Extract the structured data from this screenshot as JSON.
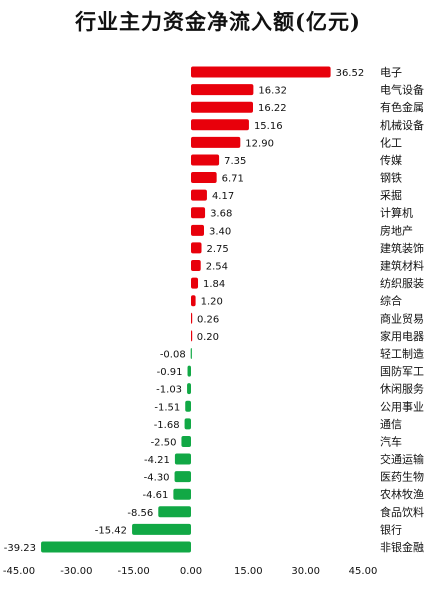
{
  "chart_data": {
    "type": "bar",
    "orientation": "horizontal",
    "title": "行业主力资金净流入额(亿元)",
    "categories": [
      "电子",
      "电气设备",
      "有色金属",
      "机械设备",
      "化工",
      "传媒",
      "钢铁",
      "采掘",
      "计算机",
      "房地产",
      "建筑装饰",
      "建筑材料",
      "纺织服装",
      "综合",
      "商业贸易",
      "家用电器",
      "轻工制造",
      "国防军工",
      "休闲服务",
      "公用事业",
      "通信",
      "汽车",
      "交通运输",
      "医药生物",
      "农林牧渔",
      "食品饮料",
      "银行",
      "非银金融"
    ],
    "values": [
      36.52,
      16.32,
      16.22,
      15.16,
      12.9,
      7.35,
      6.71,
      4.17,
      3.68,
      3.4,
      2.75,
      2.54,
      1.84,
      1.2,
      0.26,
      0.2,
      -0.08,
      -0.91,
      -1.03,
      -1.51,
      -1.68,
      -2.5,
      -4.21,
      -4.3,
      -4.61,
      -8.56,
      -15.42,
      -39.23
    ],
    "value_labels": [
      "36.52",
      "16.32",
      "16.22",
      "15.16",
      "12.90",
      "7.35",
      "6.71",
      "4.17",
      "3.68",
      "3.40",
      "2.75",
      "2.54",
      "1.84",
      "1.20",
      "0.26",
      "0.20",
      "-0.08",
      "-0.91",
      "-1.03",
      "-1.51",
      "-1.68",
      "-2.50",
      "-4.21",
      "-4.30",
      "-4.61",
      "-8.56",
      "-15.42",
      "-39.23"
    ],
    "xlim": [
      -45,
      45
    ],
    "xticks": [
      -45,
      -30,
      -15,
      0,
      15,
      30,
      45
    ],
    "xtick_labels": [
      "-45.00",
      "-30.00",
      "-15.00",
      "0.00",
      "15.00",
      "30.00",
      "45.00"
    ],
    "grid": false,
    "colors": {
      "positive": "#e8000b",
      "negative": "#11a845"
    }
  }
}
